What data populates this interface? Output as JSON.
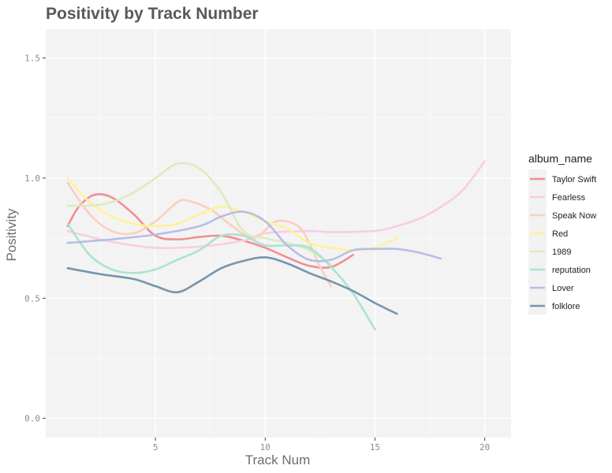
{
  "chart_data": {
    "type": "line",
    "title": "Positivity by Track Number",
    "xlabel": "Track Num",
    "ylabel": "Positivity",
    "xlim": [
      0,
      21.2
    ],
    "ylim": [
      -0.08,
      1.62
    ],
    "x_ticks": [
      5,
      10,
      15,
      20
    ],
    "x_tick_labels": [
      "5",
      "10",
      "15",
      "20"
    ],
    "y_ticks": [
      0.0,
      0.5,
      1.0,
      1.5
    ],
    "y_tick_labels": [
      "0.0",
      "0.5",
      "1.0",
      "1.5"
    ],
    "grid": true,
    "legend_title": "album_name",
    "legend_position": "right",
    "series": [
      {
        "name": "Taylor Swift",
        "color": "#f28e94",
        "points": [
          [
            1,
            0.8
          ],
          [
            1.5,
            0.88
          ],
          [
            2.2,
            0.93
          ],
          [
            3,
            0.92
          ],
          [
            4,
            0.85
          ],
          [
            5,
            0.76
          ],
          [
            6,
            0.745
          ],
          [
            7,
            0.755
          ],
          [
            8,
            0.76
          ],
          [
            9,
            0.74
          ],
          [
            10,
            0.71
          ],
          [
            11,
            0.67
          ],
          [
            12,
            0.635
          ],
          [
            13,
            0.63
          ],
          [
            14,
            0.68
          ]
        ]
      },
      {
        "name": "Fearless",
        "color": "#f9cce6",
        "points": [
          [
            1,
            0.78
          ],
          [
            3,
            0.735
          ],
          [
            5,
            0.71
          ],
          [
            7,
            0.715
          ],
          [
            9,
            0.74
          ],
          [
            10,
            0.77
          ],
          [
            12,
            0.78
          ],
          [
            13,
            0.775
          ],
          [
            15,
            0.78
          ],
          [
            16,
            0.8
          ],
          [
            17,
            0.83
          ],
          [
            18,
            0.88
          ],
          [
            19,
            0.95
          ],
          [
            20,
            1.07
          ]
        ]
      },
      {
        "name": "Speak Now",
        "color": "#fbcfbe",
        "points": [
          [
            1,
            0.98
          ],
          [
            2,
            0.85
          ],
          [
            3,
            0.78
          ],
          [
            4,
            0.77
          ],
          [
            5,
            0.82
          ],
          [
            6,
            0.9
          ],
          [
            6.5,
            0.905
          ],
          [
            7.5,
            0.87
          ],
          [
            8.5,
            0.8
          ],
          [
            9.5,
            0.75
          ],
          [
            10.5,
            0.82
          ],
          [
            11.5,
            0.8
          ],
          [
            12,
            0.73
          ],
          [
            12.5,
            0.63
          ],
          [
            13,
            0.55
          ]
        ]
      },
      {
        "name": "Red",
        "color": "#fff19a",
        "points": [
          [
            1,
            1.0
          ],
          [
            2,
            0.9
          ],
          [
            3,
            0.84
          ],
          [
            4,
            0.81
          ],
          [
            5,
            0.8
          ],
          [
            6,
            0.81
          ],
          [
            7,
            0.85
          ],
          [
            8,
            0.88
          ],
          [
            9,
            0.86
          ],
          [
            10,
            0.82
          ],
          [
            11,
            0.79
          ],
          [
            12,
            0.73
          ],
          [
            13,
            0.71
          ],
          [
            14,
            0.7
          ],
          [
            15,
            0.71
          ],
          [
            16,
            0.75
          ]
        ]
      },
      {
        "name": "1989",
        "color": "#ddebbd",
        "points": [
          [
            1,
            0.885
          ],
          [
            2,
            0.885
          ],
          [
            3,
            0.9
          ],
          [
            4,
            0.94
          ],
          [
            5,
            1.0
          ],
          [
            6,
            1.06
          ],
          [
            7,
            1.04
          ],
          [
            8,
            0.94
          ],
          [
            9,
            0.78
          ],
          [
            10,
            0.75
          ],
          [
            11,
            0.73
          ],
          [
            12,
            0.7
          ],
          [
            13,
            0.64
          ]
        ]
      },
      {
        "name": "reputation",
        "color": "#a9e4d1",
        "points": [
          [
            1,
            0.81
          ],
          [
            2,
            0.68
          ],
          [
            3,
            0.62
          ],
          [
            4,
            0.605
          ],
          [
            5,
            0.62
          ],
          [
            6,
            0.66
          ],
          [
            7,
            0.7
          ],
          [
            8,
            0.76
          ],
          [
            9,
            0.76
          ],
          [
            10,
            0.72
          ],
          [
            11,
            0.72
          ],
          [
            12,
            0.71
          ],
          [
            13,
            0.63
          ],
          [
            14,
            0.52
          ],
          [
            15,
            0.37
          ]
        ]
      },
      {
        "name": "Lover",
        "color": "#b8bde6",
        "points": [
          [
            1,
            0.73
          ],
          [
            3,
            0.745
          ],
          [
            5,
            0.765
          ],
          [
            7,
            0.8
          ],
          [
            8,
            0.84
          ],
          [
            9,
            0.86
          ],
          [
            10,
            0.82
          ],
          [
            11,
            0.72
          ],
          [
            12,
            0.66
          ],
          [
            13,
            0.66
          ],
          [
            14,
            0.7
          ],
          [
            15,
            0.705
          ],
          [
            16,
            0.705
          ],
          [
            17,
            0.69
          ],
          [
            18,
            0.665
          ]
        ]
      },
      {
        "name": "folklore",
        "color": "#7595ad",
        "points": [
          [
            1,
            0.625
          ],
          [
            2.5,
            0.6
          ],
          [
            4,
            0.58
          ],
          [
            5,
            0.55
          ],
          [
            6,
            0.525
          ],
          [
            7,
            0.57
          ],
          [
            8,
            0.625
          ],
          [
            9,
            0.655
          ],
          [
            10,
            0.67
          ],
          [
            11,
            0.645
          ],
          [
            12,
            0.605
          ],
          [
            13,
            0.57
          ],
          [
            14,
            0.53
          ],
          [
            15,
            0.48
          ],
          [
            16,
            0.435
          ]
        ]
      }
    ]
  }
}
